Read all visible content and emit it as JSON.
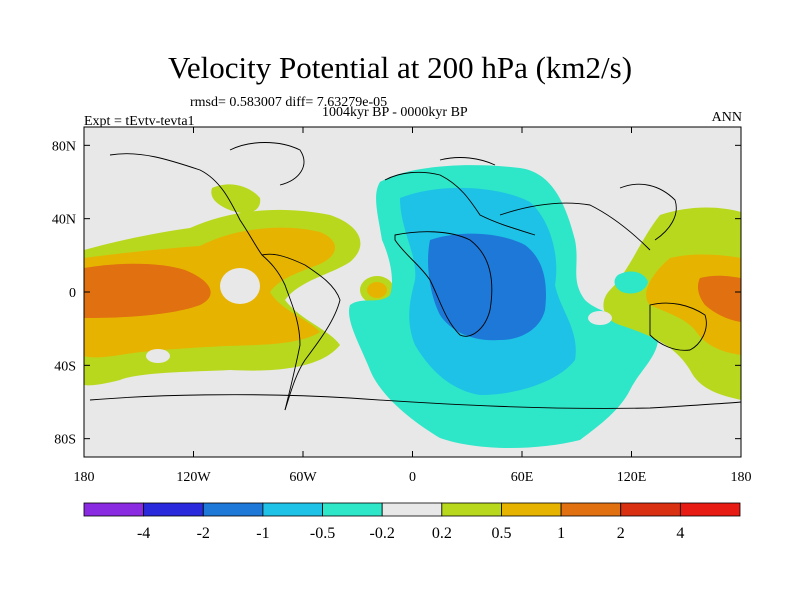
{
  "chart_data": {
    "type": "heatmap",
    "title": "Velocity Potential at 200 hPa (km2/s)",
    "subtitle": "rmsd= 0.583007 diff= 7.63279e-05",
    "period": "1004kyr BP - 0000kyr BP",
    "experiment": "Expt = tEvtv-tevta1",
    "season": "ANN",
    "x_ticks": [
      "180",
      "120W",
      "60W",
      "0",
      "60E",
      "120E",
      "180"
    ],
    "y_ticks": [
      "80N",
      "40N",
      "0",
      "40S",
      "80S"
    ],
    "xlim": [
      -180,
      180
    ],
    "ylim": [
      -90,
      90
    ],
    "colorbar": {
      "levels": [
        "-4",
        "-2",
        "-1",
        "-0.5",
        "-0.2",
        "0.2",
        "0.5",
        "1",
        "2",
        "4"
      ],
      "colors": [
        "#8a2be2",
        "#2a2adc",
        "#1e78d8",
        "#1ec2e6",
        "#2ee6c8",
        "#e8e8e8",
        "#b8d81e",
        "#e6b400",
        "#e07010",
        "#d83010",
        "#e81a14"
      ]
    },
    "regions": [
      {
        "name": "pacific-positive",
        "category": "0.5 to 1"
      },
      {
        "name": "pacific-strong",
        "category": "1 to 2"
      },
      {
        "name": "atlantic-africa-negative",
        "category": "-0.5 to -0.2"
      },
      {
        "name": "africa-core",
        "category": "-1 to -0.5"
      },
      {
        "name": "africa-center",
        "category": "-2 to -1"
      },
      {
        "name": "west-pacific-positive",
        "category": "1 to 2"
      }
    ]
  }
}
